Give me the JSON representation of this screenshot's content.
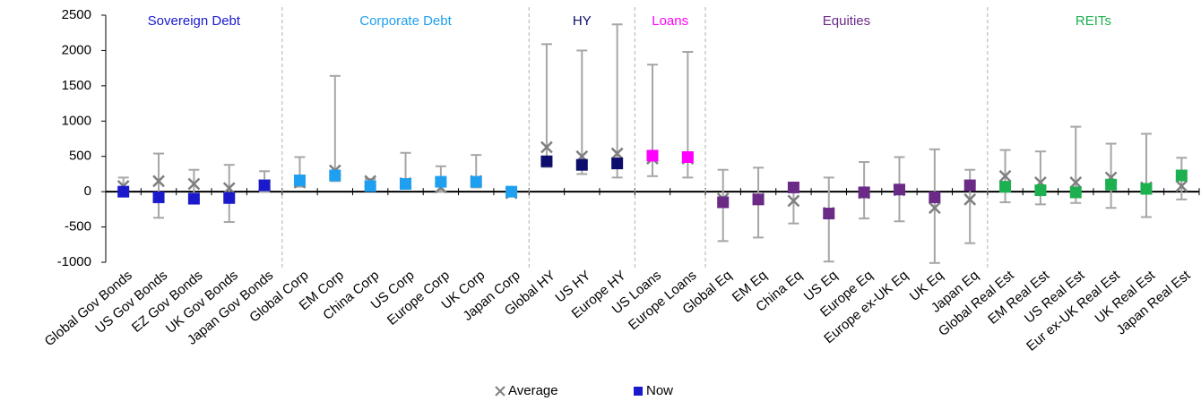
{
  "chart_data": {
    "type": "range-dot",
    "ylim": [
      -1000,
      2500
    ],
    "yticks": [
      -1000,
      -500,
      0,
      500,
      1000,
      1500,
      2000,
      2500
    ],
    "range_color": "#a6a6a6",
    "legend": [
      {
        "name": "Average",
        "color": "#7f7f7f"
      },
      {
        "name": "Now",
        "color": "#1a1acc"
      }
    ],
    "groups": [
      {
        "name": "Sovereign Debt",
        "color": "#1a1acc",
        "categories": [
          "Global Gov Bonds",
          "US Gov Bonds",
          "EZ Gov Bonds",
          "UK Gov Bonds",
          "Japan Gov Bonds"
        ],
        "low": [
          -30,
          -370,
          -110,
          -430,
          0
        ],
        "high": [
          200,
          540,
          310,
          380,
          290
        ],
        "average": [
          80,
          150,
          110,
          50,
          90
        ],
        "now": [
          0,
          -80,
          -100,
          -90,
          90
        ]
      },
      {
        "name": "Corporate Debt",
        "color": "#1e9ff0",
        "categories": [
          "Global Corp",
          "EM Corp",
          "China Corp",
          "US Corp",
          "Europe Corp",
          "UK Corp",
          "Japan Corp"
        ],
        "low": [
          70,
          150,
          50,
          60,
          0,
          60,
          -50
        ],
        "high": [
          490,
          1640,
          180,
          550,
          360,
          520,
          20
        ],
        "average": [
          130,
          300,
          150,
          120,
          60,
          150,
          -20
        ],
        "now": [
          160,
          230,
          80,
          110,
          140,
          140,
          0
        ]
      },
      {
        "name": "HY",
        "color": "#0d0d6b",
        "categories": [
          "Global HY",
          "US HY",
          "Europe HY"
        ],
        "low": [
          350,
          250,
          200
        ],
        "high": [
          2090,
          2000,
          2370
        ],
        "average": [
          630,
          500,
          540
        ],
        "now": [
          430,
          380,
          400
        ]
      },
      {
        "name": "Loans",
        "color": "#ff00ff",
        "categories": [
          "US Loans",
          "Europe Loans"
        ],
        "low": [
          220,
          200
        ],
        "high": [
          1800,
          1980
        ],
        "average": [
          470,
          470
        ],
        "now": [
          510,
          490
        ]
      },
      {
        "name": "Equities",
        "color": "#6a2a86",
        "categories": [
          "Global Eq",
          "EM Eq",
          "China Eq",
          "US Eq",
          "Europe Eq",
          "Europe ex-UK Eq",
          "UK Eq",
          "Japan Eq"
        ],
        "low": [
          -700,
          -650,
          -450,
          -990,
          -380,
          -420,
          -1010,
          -730
        ],
        "high": [
          310,
          340,
          50,
          200,
          420,
          490,
          600,
          310
        ],
        "average": [
          -100,
          -100,
          -130,
          -300,
          -20,
          20,
          -230,
          -110
        ],
        "now": [
          -150,
          -110,
          60,
          -310,
          -10,
          30,
          -80,
          90
        ]
      },
      {
        "name": "REITs",
        "color": "#1db050",
        "categories": [
          "Global Real Est",
          "EM Real Est",
          "US Real Est",
          "Eur ex-UK Real Est",
          "UK Real Est",
          "Japan Real Est"
        ],
        "low": [
          -150,
          -180,
          -160,
          -230,
          -360,
          -110
        ],
        "high": [
          590,
          570,
          920,
          680,
          820,
          480
        ],
        "average": [
          220,
          130,
          130,
          200,
          60,
          80
        ],
        "now": [
          70,
          20,
          -10,
          100,
          40,
          230
        ]
      }
    ]
  }
}
